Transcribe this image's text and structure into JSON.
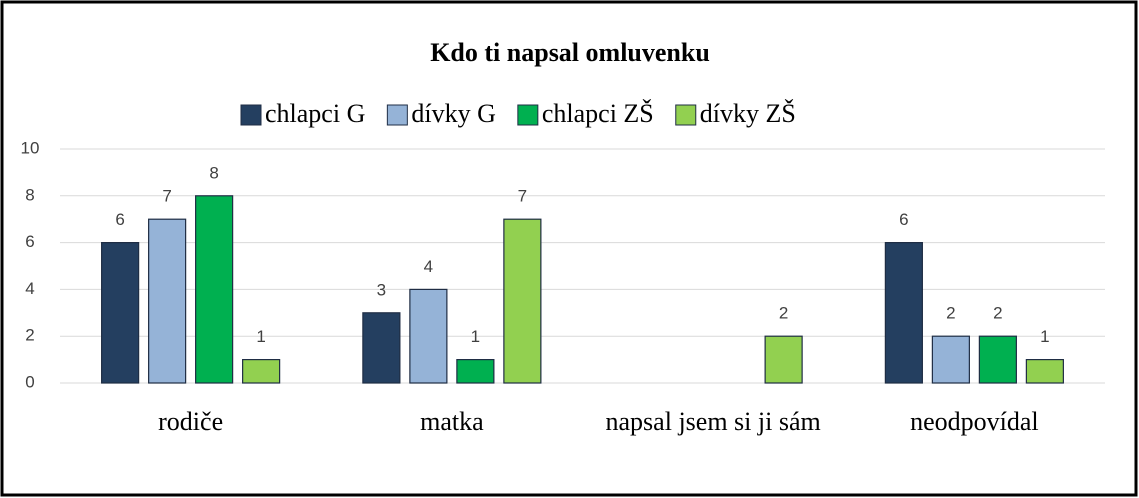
{
  "chart_data": {
    "type": "bar",
    "title": "Kdo ti napsal omluvenku",
    "categories": [
      "rodiče",
      "matka",
      "napsal jsem si ji sám",
      "neodpovídal"
    ],
    "series": [
      {
        "name": "chlapci G",
        "color": "#243f60",
        "values": [
          6,
          3,
          null,
          6
        ]
      },
      {
        "name": "dívky G",
        "color": "#95b3d7",
        "values": [
          7,
          4,
          null,
          2
        ]
      },
      {
        "name": "chlapci ZŠ",
        "color": "#00b050",
        "values": [
          8,
          1,
          null,
          2
        ]
      },
      {
        "name": "dívky ZŠ",
        "color": "#92d050",
        "values": [
          1,
          7,
          2,
          1
        ]
      }
    ],
    "ylim": [
      0,
      10
    ],
    "yticks": [
      0,
      2,
      4,
      6,
      8,
      10
    ],
    "grid": true,
    "legend": "top"
  }
}
